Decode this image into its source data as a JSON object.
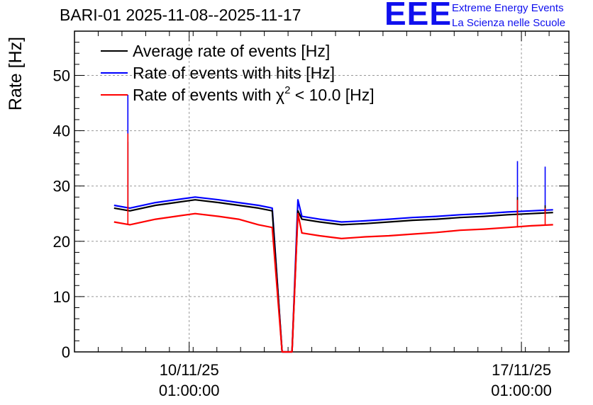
{
  "header": {
    "title": "BARI-01 2025-11-08--2025-11-17",
    "logo_mark": "EEE",
    "logo_line1": "Extreme Energy Events",
    "logo_line2": "La Scienza nelle Scuole"
  },
  "chart_data": {
    "type": "line",
    "title": "BARI-01 2025-11-08--2025-11-17",
    "xlabel": "",
    "ylabel": "Rate [Hz]",
    "ylim": [
      0,
      58
    ],
    "xlim": [
      "2025-11-07 15:00",
      "2025-11-18 01:00"
    ],
    "grid": true,
    "legend_position": "top-left",
    "x_tick_labels": [
      {
        "x": "2025-11-10 01:00",
        "date": "10/11/25",
        "time": "01:00:00"
      },
      {
        "x": "2025-11-17 01:00",
        "date": "17/11/25",
        "time": "01:00:00"
      }
    ],
    "y_ticks": [
      0,
      10,
      20,
      30,
      40,
      50
    ],
    "x": [
      "2025-11-08 11:00",
      "2025-11-08 19:00",
      "2025-11-09 08:00",
      "2025-11-09 18:00",
      "2025-11-10 04:00",
      "2025-11-10 16:00",
      "2025-11-11 02:00",
      "2025-11-11 12:00",
      "2025-11-11 19:00",
      "2025-11-12 00:00",
      "2025-11-12 05:00",
      "2025-11-12 08:00",
      "2025-11-12 10:00",
      "2025-11-12 19:00",
      "2025-11-13 06:00",
      "2025-11-13 18:00",
      "2025-11-14 06:00",
      "2025-11-14 18:00",
      "2025-11-15 06:00",
      "2025-11-15 18:00",
      "2025-11-16 06:00",
      "2025-11-16 18:00",
      "2025-11-17 06:00",
      "2025-11-17 17:00"
    ],
    "series": [
      {
        "name": "Average rate of events [Hz]",
        "color": "#000000",
        "values": [
          26,
          25.5,
          26.5,
          27,
          27.5,
          27,
          26.5,
          26,
          25.5,
          0,
          0,
          25.5,
          24,
          23.5,
          23,
          23.2,
          23.5,
          23.8,
          24,
          24.3,
          24.5,
          24.8,
          25,
          25.2
        ]
      },
      {
        "name": "Rate of events with hits [Hz]",
        "color": "#0000ff",
        "values": [
          26.5,
          26,
          27,
          27.5,
          28,
          27.5,
          27,
          26.5,
          26,
          0,
          0,
          27.5,
          24.5,
          24,
          23.5,
          23.7,
          24,
          24.3,
          24.5,
          24.8,
          25,
          25.3,
          25.5,
          25.7
        ]
      },
      {
        "name": "Rate of events with χ² < 10.0 [Hz]",
        "color": "#ff0000",
        "values": [
          23.5,
          23,
          24,
          24.5,
          25,
          24.5,
          24,
          23,
          22.5,
          0,
          0,
          25,
          21.5,
          21,
          20.5,
          20.8,
          21,
          21.3,
          21.6,
          22,
          22.2,
          22.5,
          22.8,
          23
        ]
      }
    ],
    "spikes": [
      {
        "x": "2025-11-08 18:00",
        "hits": 46.5,
        "chi2": 39.5,
        "avg": 38
      },
      {
        "x": "2025-11-16 23:00",
        "hits": 34.5,
        "chi2": 27.5,
        "avg": 28
      },
      {
        "x": "2025-11-17 13:00",
        "hits": 33.5,
        "chi2": 26,
        "avg": 26.5
      }
    ],
    "legend": {
      "items": [
        {
          "label": "Average rate of events [Hz]",
          "color": "#000000"
        },
        {
          "label": "Rate of events with hits [Hz]",
          "color": "#0000ff"
        },
        {
          "label_prefix": "Rate of events with ",
          "label_chi": "χ",
          "label_sup": "2",
          "label_suffix": " < 10.0 [Hz]",
          "color": "#ff0000"
        }
      ]
    }
  }
}
